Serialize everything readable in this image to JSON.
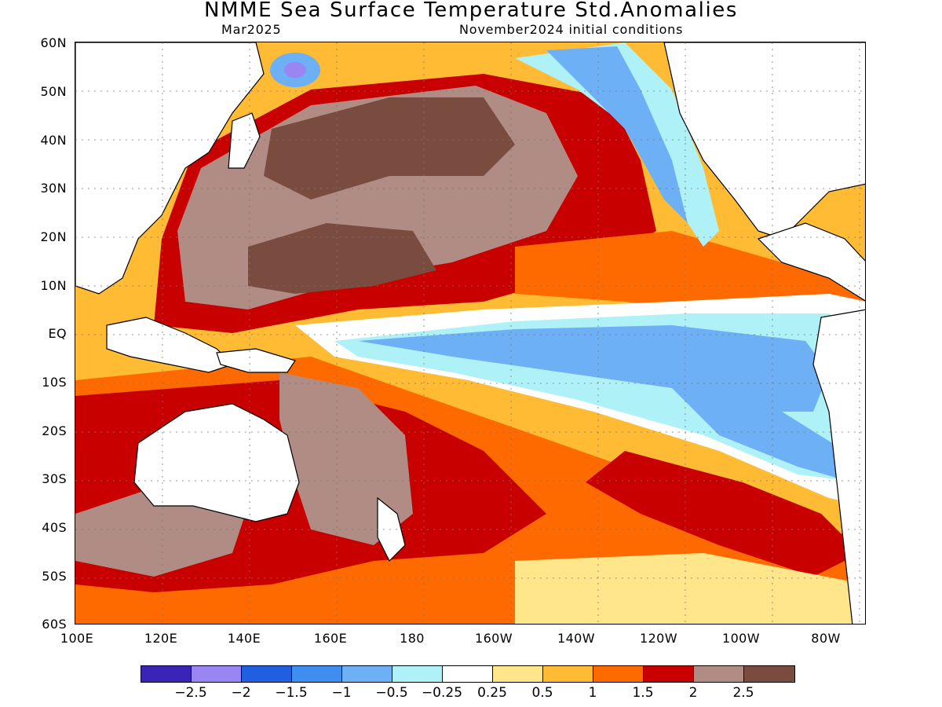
{
  "title": "NMME Sea Surface Temperature Std.Anomalies",
  "subtitle_left": "Mar2025",
  "subtitle_right": "November2024 initial conditions",
  "lat_labels": [
    "60N",
    "50N",
    "40N",
    "30N",
    "20N",
    "10N",
    "EQ",
    "10S",
    "20S",
    "30S",
    "40S",
    "50S",
    "60S"
  ],
  "lon_labels": [
    "100E",
    "120E",
    "140E",
    "160E",
    "180",
    "160W",
    "140W",
    "120W",
    "100W",
    "80W"
  ],
  "colorbar": {
    "colors": [
      "#3a24b8",
      "#9a86f3",
      "#1f5fe0",
      "#3d8ef0",
      "#6eb0f5",
      "#aef1f7",
      "#ffffff",
      "#ffe68a",
      "#ffbb34",
      "#ff6a00",
      "#c80000",
      "#b08c84",
      "#7a4c40"
    ],
    "labels": [
      "−2.5",
      "−2",
      "−1.5",
      "−1",
      "−0.5",
      "−0.25",
      "0.25",
      "0.5",
      "1",
      "1.5",
      "2",
      "2.5"
    ]
  },
  "map_legend": {
    "land": "#ffffff",
    "coast": "#000000"
  }
}
